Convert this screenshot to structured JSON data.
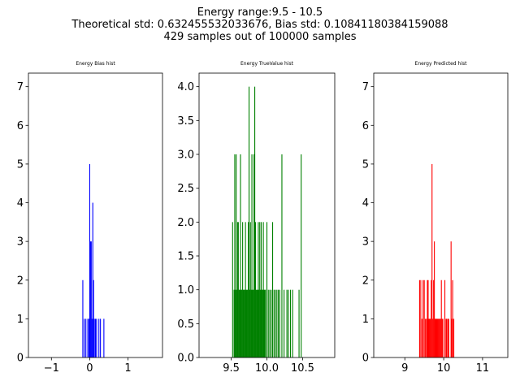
{
  "figure": {
    "title_lines": [
      "Energy range:9.5 - 10.5",
      "Theoretical std: 0.632455532033676, Bias std: 0.10841180384159088",
      "429 samples out of 100000 samples"
    ]
  },
  "chart_data": [
    {
      "type": "bar",
      "title": "Energy Bias hist",
      "color": "#0000ff",
      "xlim": [
        -1.6,
        1.9
      ],
      "ylim": [
        0,
        7.35
      ],
      "xticks": [
        -1,
        0,
        1
      ],
      "xtick_labels": [
        "−1",
        "0",
        "1"
      ],
      "yticks": [
        0,
        1,
        2,
        3,
        4,
        5,
        6,
        7
      ],
      "ytick_labels": [
        "0",
        "1",
        "2",
        "3",
        "4",
        "5",
        "6",
        "7"
      ],
      "bar_width": 0.018,
      "bars": [
        {
          "x": -0.18,
          "y": 2
        },
        {
          "x": -0.14,
          "y": 1
        },
        {
          "x": -0.1,
          "y": 1
        },
        {
          "x": -0.05,
          "y": 1
        },
        {
          "x": -0.02,
          "y": 1
        },
        {
          "x": 0.0,
          "y": 5
        },
        {
          "x": 0.02,
          "y": 3
        },
        {
          "x": 0.04,
          "y": 3
        },
        {
          "x": 0.06,
          "y": 1
        },
        {
          "x": 0.08,
          "y": 4
        },
        {
          "x": 0.1,
          "y": 2
        },
        {
          "x": 0.12,
          "y": 1
        },
        {
          "x": 0.15,
          "y": 1
        },
        {
          "x": 0.18,
          "y": 1
        },
        {
          "x": 0.24,
          "y": 1
        },
        {
          "x": 0.28,
          "y": 1
        },
        {
          "x": 0.37,
          "y": 1
        }
      ]
    },
    {
      "type": "bar",
      "title": "Energy TrueValue hist",
      "color": "#008000",
      "xlim": [
        9.05,
        10.95
      ],
      "ylim": [
        0,
        4.2
      ],
      "xticks": [
        9.5,
        10.0,
        10.5
      ],
      "xtick_labels": [
        "9.5",
        "10.0",
        "10.5"
      ],
      "yticks": [
        0,
        0.5,
        1.0,
        1.5,
        2.0,
        2.5,
        3.0,
        3.5,
        4.0
      ],
      "ytick_labels": [
        "0.0",
        "0.5",
        "1.0",
        "1.5",
        "2.0",
        "2.5",
        "3.0",
        "3.5",
        "4.0"
      ],
      "bar_width": 0.006,
      "bars": [
        {
          "x": 9.52,
          "y": 2
        },
        {
          "x": 9.54,
          "y": 1
        },
        {
          "x": 9.55,
          "y": 3
        },
        {
          "x": 9.56,
          "y": 1
        },
        {
          "x": 9.57,
          "y": 3
        },
        {
          "x": 9.58,
          "y": 1
        },
        {
          "x": 9.59,
          "y": 2
        },
        {
          "x": 9.6,
          "y": 2
        },
        {
          "x": 9.61,
          "y": 1
        },
        {
          "x": 9.62,
          "y": 1
        },
        {
          "x": 9.63,
          "y": 3
        },
        {
          "x": 9.64,
          "y": 1
        },
        {
          "x": 9.65,
          "y": 1
        },
        {
          "x": 9.66,
          "y": 2
        },
        {
          "x": 9.67,
          "y": 1
        },
        {
          "x": 9.68,
          "y": 1
        },
        {
          "x": 9.69,
          "y": 1
        },
        {
          "x": 9.7,
          "y": 2
        },
        {
          "x": 9.71,
          "y": 1
        },
        {
          "x": 9.72,
          "y": 1
        },
        {
          "x": 9.73,
          "y": 1
        },
        {
          "x": 9.74,
          "y": 2
        },
        {
          "x": 9.75,
          "y": 4
        },
        {
          "x": 9.76,
          "y": 1
        },
        {
          "x": 9.77,
          "y": 2
        },
        {
          "x": 9.78,
          "y": 1
        },
        {
          "x": 9.79,
          "y": 3
        },
        {
          "x": 9.8,
          "y": 1
        },
        {
          "x": 9.81,
          "y": 1
        },
        {
          "x": 9.82,
          "y": 3
        },
        {
          "x": 9.83,
          "y": 4
        },
        {
          "x": 9.84,
          "y": 2
        },
        {
          "x": 9.85,
          "y": 1
        },
        {
          "x": 9.86,
          "y": 1
        },
        {
          "x": 9.87,
          "y": 1
        },
        {
          "x": 9.88,
          "y": 2
        },
        {
          "x": 9.89,
          "y": 1
        },
        {
          "x": 9.9,
          "y": 2
        },
        {
          "x": 9.91,
          "y": 1
        },
        {
          "x": 9.92,
          "y": 2
        },
        {
          "x": 9.93,
          "y": 1
        },
        {
          "x": 9.94,
          "y": 1
        },
        {
          "x": 9.95,
          "y": 2
        },
        {
          "x": 9.96,
          "y": 1
        },
        {
          "x": 9.97,
          "y": 1
        },
        {
          "x": 9.98,
          "y": 1
        },
        {
          "x": 10.0,
          "y": 2
        },
        {
          "x": 10.02,
          "y": 1
        },
        {
          "x": 10.04,
          "y": 1
        },
        {
          "x": 10.06,
          "y": 1
        },
        {
          "x": 10.08,
          "y": 2
        },
        {
          "x": 10.1,
          "y": 1
        },
        {
          "x": 10.12,
          "y": 1
        },
        {
          "x": 10.14,
          "y": 1
        },
        {
          "x": 10.16,
          "y": 1
        },
        {
          "x": 10.18,
          "y": 1
        },
        {
          "x": 10.21,
          "y": 3
        },
        {
          "x": 10.24,
          "y": 1
        },
        {
          "x": 10.28,
          "y": 1
        },
        {
          "x": 10.3,
          "y": 1
        },
        {
          "x": 10.33,
          "y": 1
        },
        {
          "x": 10.36,
          "y": 1
        },
        {
          "x": 10.45,
          "y": 1
        },
        {
          "x": 10.48,
          "y": 3
        }
      ]
    },
    {
      "type": "bar",
      "title": "Energy Predicted hist",
      "color": "#ff0000",
      "xlim": [
        8.2,
        11.65
      ],
      "ylim": [
        0,
        7.35
      ],
      "xticks": [
        9,
        10,
        11
      ],
      "xtick_labels": [
        "9",
        "10",
        "11"
      ],
      "yticks": [
        0,
        1,
        2,
        3,
        4,
        5,
        6,
        7
      ],
      "ytick_labels": [
        "0",
        "1",
        "2",
        "3",
        "4",
        "5",
        "6",
        "7"
      ],
      "bar_width": 0.011,
      "bars": [
        {
          "x": 9.38,
          "y": 2
        },
        {
          "x": 9.41,
          "y": 2
        },
        {
          "x": 9.44,
          "y": 1
        },
        {
          "x": 9.47,
          "y": 2
        },
        {
          "x": 9.5,
          "y": 2
        },
        {
          "x": 9.53,
          "y": 1
        },
        {
          "x": 9.56,
          "y": 1
        },
        {
          "x": 9.58,
          "y": 2
        },
        {
          "x": 9.6,
          "y": 2
        },
        {
          "x": 9.62,
          "y": 1
        },
        {
          "x": 9.64,
          "y": 1
        },
        {
          "x": 9.66,
          "y": 1
        },
        {
          "x": 9.68,
          "y": 2
        },
        {
          "x": 9.7,
          "y": 5
        },
        {
          "x": 9.72,
          "y": 1
        },
        {
          "x": 9.74,
          "y": 2
        },
        {
          "x": 9.76,
          "y": 3
        },
        {
          "x": 9.78,
          "y": 1
        },
        {
          "x": 9.8,
          "y": 1
        },
        {
          "x": 9.82,
          "y": 1
        },
        {
          "x": 9.84,
          "y": 1
        },
        {
          "x": 9.86,
          "y": 1
        },
        {
          "x": 9.88,
          "y": 1
        },
        {
          "x": 9.9,
          "y": 1
        },
        {
          "x": 9.92,
          "y": 1
        },
        {
          "x": 9.94,
          "y": 2
        },
        {
          "x": 9.96,
          "y": 1
        },
        {
          "x": 9.98,
          "y": 1
        },
        {
          "x": 10.03,
          "y": 2
        },
        {
          "x": 10.06,
          "y": 1
        },
        {
          "x": 10.08,
          "y": 1
        },
        {
          "x": 10.11,
          "y": 1
        },
        {
          "x": 10.13,
          "y": 1
        },
        {
          "x": 10.19,
          "y": 3
        },
        {
          "x": 10.21,
          "y": 1
        },
        {
          "x": 10.23,
          "y": 2
        },
        {
          "x": 10.26,
          "y": 1
        }
      ]
    }
  ]
}
